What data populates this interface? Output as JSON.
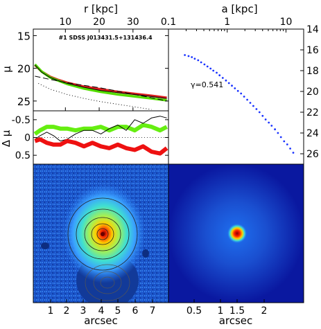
{
  "chart_data": [
    {
      "type": "line",
      "panel": "surface-brightness-profile",
      "title": "#1 SDSS J013431.5+131436.4",
      "xlabel": "r [kpc]",
      "ylabel": "μ",
      "x_ticks": [
        "10",
        "20",
        "30"
      ],
      "y_ticks": [
        "15",
        "20",
        "25"
      ],
      "xlim": [
        0,
        8
      ],
      "ylim": [
        26.5,
        14
      ],
      "x_unit": "arcsec",
      "y_reversed": true,
      "series": [
        {
          "color": "#e02020",
          "x": [
            0.1,
            0.5,
            1,
            1.5,
            2,
            3,
            4,
            5,
            6,
            7,
            7.9
          ],
          "y": [
            19.5,
            20.5,
            21.3,
            21.8,
            22.2,
            22.8,
            23.2,
            23.6,
            23.9,
            24.2,
            24.5
          ]
        },
        {
          "color": "#55dd00",
          "x": [
            0.1,
            0.5,
            1,
            1.5,
            2,
            3,
            4,
            5,
            6,
            7,
            7.9
          ],
          "y": [
            19.4,
            20.5,
            21.4,
            21.9,
            22.4,
            23.1,
            23.6,
            24.0,
            24.3,
            24.6,
            24.9
          ]
        },
        {
          "color": "#000000",
          "x": [
            0.1,
            0.5,
            1,
            1.5,
            2,
            3,
            4,
            5,
            6,
            7,
            7.9
          ],
          "y": [
            19.5,
            20.6,
            21.4,
            21.9,
            22.3,
            22.9,
            23.4,
            23.7,
            24.0,
            24.3,
            24.6
          ]
        },
        {
          "color": "#000000",
          "dash": "dashed",
          "x": [
            0.1,
            1,
            2,
            3,
            4,
            5,
            6,
            7,
            7.9
          ],
          "y": [
            21.2,
            21.7,
            22.2,
            22.6,
            23.0,
            23.5,
            24.0,
            24.5,
            25.0
          ]
        },
        {
          "color": "#000000",
          "dash": "dotted",
          "x": [
            0.3,
            1,
            2,
            3,
            4,
            5,
            6,
            7
          ],
          "y": [
            22.3,
            23.2,
            24.0,
            24.6,
            25.1,
            25.5,
            25.9,
            26.3
          ]
        }
      ]
    },
    {
      "type": "line",
      "panel": "residuals",
      "ylabel": "Δ μ",
      "y_ticks": [
        "-0.5",
        "0",
        "0.5"
      ],
      "xlim": [
        0,
        8
      ],
      "ylim": [
        0.75,
        -0.75
      ],
      "series": [
        {
          "color": "#66ee11",
          "x": [
            0.1,
            0.4,
            0.8,
            1.2,
            1.6,
            2,
            2.5,
            3,
            3.5,
            4,
            4.5,
            5,
            5.5,
            6,
            6.5,
            7,
            7.5,
            7.9
          ],
          "y": [
            -0.1,
            -0.2,
            -0.3,
            -0.3,
            -0.25,
            -0.25,
            -0.2,
            -0.25,
            -0.25,
            -0.3,
            -0.2,
            -0.3,
            -0.3,
            -0.2,
            -0.35,
            -0.3,
            -0.2,
            -0.3
          ]
        },
        {
          "color": "#000000",
          "x": [
            0.1,
            0.4,
            0.8,
            1.2,
            1.6,
            2,
            2.5,
            3,
            3.5,
            4,
            4.5,
            5,
            5.5,
            6,
            6.5,
            7,
            7.5,
            7.9
          ],
          "y": [
            0.05,
            -0.05,
            -0.15,
            -0.05,
            0.1,
            0.05,
            -0.1,
            -0.2,
            -0.2,
            -0.1,
            -0.25,
            -0.35,
            -0.2,
            -0.5,
            -0.4,
            -0.55,
            -0.6,
            -0.55
          ]
        },
        {
          "color": "#ee1111",
          "x": [
            0.1,
            0.4,
            0.8,
            1.2,
            1.6,
            2,
            2.5,
            3,
            3.5,
            4,
            4.5,
            5,
            5.5,
            6,
            6.5,
            7,
            7.5,
            7.9
          ],
          "y": [
            0.1,
            0.05,
            0.15,
            0.2,
            0.2,
            0.1,
            0.15,
            0.25,
            0.15,
            0.25,
            0.3,
            0.2,
            0.3,
            0.35,
            0.25,
            0.4,
            0.45,
            0.3
          ]
        }
      ]
    },
    {
      "type": "scatter",
      "panel": "a-profile",
      "xlabel": "a [kpc]",
      "x_ticks": [
        "0.1",
        "1",
        "10"
      ],
      "y_ticks": [
        "14",
        "16",
        "18",
        "20",
        "22",
        "24",
        "26"
      ],
      "xscale": "log",
      "xlim": [
        0.1,
        20
      ],
      "ylim": [
        27,
        14
      ],
      "annotation": "γ=0.541",
      "points": [
        [
          0.19,
          16.5
        ],
        [
          0.22,
          16.6
        ],
        [
          0.25,
          16.7
        ],
        [
          0.28,
          16.85
        ],
        [
          0.32,
          17.0
        ],
        [
          0.36,
          17.2
        ],
        [
          0.41,
          17.4
        ],
        [
          0.46,
          17.6
        ],
        [
          0.52,
          17.8
        ],
        [
          0.58,
          18.0
        ],
        [
          0.66,
          18.2
        ],
        [
          0.74,
          18.45
        ],
        [
          0.84,
          18.7
        ],
        [
          0.95,
          18.95
        ],
        [
          1.07,
          19.2
        ],
        [
          1.2,
          19.45
        ],
        [
          1.35,
          19.7
        ],
        [
          1.52,
          19.95
        ],
        [
          1.72,
          20.2
        ],
        [
          1.94,
          20.5
        ],
        [
          2.19,
          20.8
        ],
        [
          2.47,
          21.1
        ],
        [
          2.78,
          21.4
        ],
        [
          3.14,
          21.7
        ],
        [
          3.54,
          22.0
        ],
        [
          4.0,
          22.35
        ],
        [
          4.5,
          22.7
        ],
        [
          5.1,
          23.0
        ],
        [
          5.7,
          23.3
        ],
        [
          6.5,
          23.65
        ],
        [
          7.3,
          24.0
        ],
        [
          8.2,
          24.4
        ],
        [
          9.3,
          24.8
        ],
        [
          10.5,
          25.1
        ],
        [
          11.8,
          25.5
        ],
        [
          13.3,
          25.9
        ]
      ]
    },
    {
      "type": "heatmap",
      "panel": "galaxy-image",
      "xlabel": "arcsec",
      "x_ticks": [
        "1",
        "2",
        "3",
        "4",
        "5",
        "6",
        "7"
      ]
    },
    {
      "type": "heatmap",
      "panel": "psf-image",
      "xlabel": "arcsec",
      "x_ticks": [
        "0.5",
        "1",
        "1.5",
        "2"
      ]
    }
  ]
}
